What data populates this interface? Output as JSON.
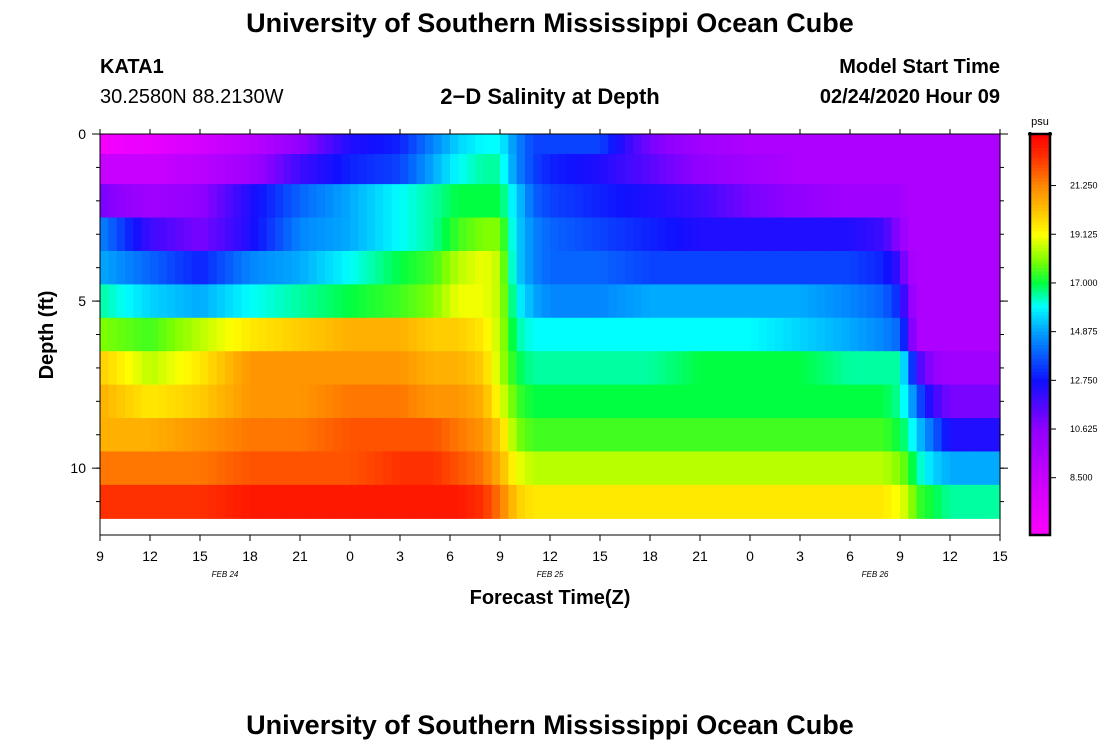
{
  "title": "University of Southern Mississippi Ocean Cube",
  "footer_title": "University of Southern Mississippi Ocean Cube",
  "station": {
    "id": "KATA1",
    "coords": "30.2580N 88.2130W"
  },
  "model": {
    "label": "Model Start Time",
    "value": "02/24/2020 Hour 09"
  },
  "chart_data": {
    "type": "heatmap",
    "title": "2−D Salinity at Depth",
    "xlabel": "Forecast Time(Z)",
    "ylabel": "Depth (ft)",
    "x_range_hours": [
      0,
      54
    ],
    "x_ticks": [
      {
        "h": 0,
        "label": "9"
      },
      {
        "h": 3,
        "label": "12"
      },
      {
        "h": 6,
        "label": "15"
      },
      {
        "h": 9,
        "label": "18"
      },
      {
        "h": 12,
        "label": "21"
      },
      {
        "h": 15,
        "label": "0"
      },
      {
        "h": 18,
        "label": "3"
      },
      {
        "h": 21,
        "label": "6"
      },
      {
        "h": 24,
        "label": "9"
      },
      {
        "h": 27,
        "label": "12"
      },
      {
        "h": 30,
        "label": "15"
      },
      {
        "h": 33,
        "label": "18"
      },
      {
        "h": 36,
        "label": "21"
      },
      {
        "h": 39,
        "label": "0"
      },
      {
        "h": 42,
        "label": "3"
      },
      {
        "h": 45,
        "label": "6"
      },
      {
        "h": 48,
        "label": "9"
      },
      {
        "h": 51,
        "label": "12"
      },
      {
        "h": 54,
        "label": "15"
      }
    ],
    "date_labels": [
      {
        "h": 7.5,
        "label": "FEB 24"
      },
      {
        "h": 27,
        "label": "FEB 25"
      },
      {
        "h": 46.5,
        "label": "FEB 26"
      }
    ],
    "y_range_ft": [
      0,
      12
    ],
    "y_ticks": [
      0,
      5,
      10
    ],
    "y_minor_ticks": [
      0,
      1,
      2,
      3,
      4,
      5,
      6,
      7,
      8,
      9,
      10,
      11
    ],
    "depth_layers": [
      0.5,
      1.5,
      2.5,
      3.5,
      4.5,
      5.5,
      6.5,
      7.5,
      8.5,
      9.5,
      10.5,
      11.5
    ],
    "layer_bounds_ft": [
      0,
      0.6,
      1.5,
      2.5,
      3.5,
      4.5,
      5.5,
      6.5,
      7.5,
      8.5,
      9.5,
      10.5,
      11.5,
      12
    ],
    "x_knots_hours": [
      0,
      3,
      6,
      9,
      12,
      15,
      18,
      20,
      21.5,
      23,
      24,
      25,
      26,
      27,
      30,
      33,
      36,
      39,
      42,
      45,
      47,
      48,
      48.5,
      49,
      50,
      51,
      52,
      54
    ],
    "salinity_psu": [
      [
        6.5,
        7,
        8,
        9,
        10.5,
        12.5,
        13,
        14.5,
        15.5,
        16,
        16,
        14.5,
        13.5,
        13.5,
        13.5,
        11,
        10,
        9.5,
        9.5,
        9.5,
        9.5,
        9.5,
        9.5,
        9.5,
        9.5,
        9.5,
        9.5,
        9.5
      ],
      [
        8.5,
        8.5,
        9,
        10,
        12,
        13,
        13.5,
        15,
        16,
        16.5,
        16.5,
        14.5,
        13.5,
        13,
        12.5,
        11.5,
        10.5,
        10,
        9.5,
        9.5,
        9.5,
        9.5,
        9.5,
        9.5,
        9.5,
        9.5,
        9.5,
        9.5
      ],
      [
        11,
        10,
        10.5,
        12.5,
        14,
        15,
        16,
        16.5,
        17,
        17,
        17,
        15.5,
        14,
        13.5,
        13,
        12.5,
        12,
        11,
        10.5,
        10,
        10,
        10,
        9.5,
        9.5,
        9.5,
        9.5,
        9.5,
        9.5
      ],
      [
        14.5,
        12,
        11,
        12.5,
        14.5,
        15,
        16,
        16.5,
        17.5,
        18,
        18,
        15.5,
        14.5,
        14,
        13.5,
        13,
        12.5,
        12.5,
        12.5,
        12.5,
        12,
        10.5,
        9.5,
        9.5,
        9.5,
        9.5,
        9.5,
        9.5
      ],
      [
        15,
        14,
        13,
        14.5,
        15,
        16,
        17,
        17.5,
        18.5,
        19,
        18.5,
        15.5,
        14.5,
        14,
        14,
        13.5,
        13.5,
        13.5,
        13.5,
        13.5,
        13,
        12,
        10,
        9.5,
        9.5,
        9.5,
        9.5,
        9.5
      ],
      [
        16.5,
        15.5,
        15,
        16,
        16.5,
        17,
        17.5,
        18,
        19,
        19,
        18.5,
        16,
        15,
        14.5,
        14.5,
        15,
        15,
        15,
        15,
        14.5,
        14,
        13,
        11,
        9.5,
        9.5,
        9.5,
        9.5,
        9.5
      ],
      [
        18,
        17.5,
        18.5,
        19.5,
        20,
        20.5,
        20.5,
        20,
        20,
        19.5,
        18.5,
        16.5,
        16,
        16,
        16,
        16,
        16,
        16,
        15.5,
        15,
        14.5,
        14,
        12,
        9.5,
        9.5,
        9.5,
        9.5,
        9.5
      ],
      [
        20,
        18.5,
        19.5,
        21,
        21,
        21,
        21,
        20.5,
        20.5,
        20,
        18.5,
        17,
        16.5,
        16.5,
        16.5,
        16.5,
        17,
        17,
        17,
        16.5,
        16.5,
        16.5,
        14.5,
        12,
        10.5,
        10,
        10,
        10
      ],
      [
        20.5,
        19.5,
        20,
        21,
        21,
        21.5,
        21.5,
        21,
        21,
        20.5,
        19,
        17.5,
        17,
        17,
        17,
        17,
        17,
        17,
        17,
        17,
        17,
        16.5,
        15.5,
        14,
        12,
        11,
        11,
        11
      ],
      [
        20.5,
        20.5,
        21,
        21.5,
        21.5,
        22,
        22,
        22,
        21.5,
        21,
        20,
        18,
        17.5,
        17.5,
        17.5,
        17.5,
        17.5,
        17.5,
        17.5,
        17.5,
        17.5,
        17,
        16.5,
        15.5,
        14,
        12.5,
        12.5,
        12.5
      ],
      [
        21.5,
        21.5,
        21.5,
        22,
        22,
        22,
        22.5,
        22.5,
        22,
        21.5,
        20.5,
        19,
        18.5,
        18.5,
        18.5,
        18.5,
        18.5,
        18.5,
        18.5,
        18.5,
        18.5,
        18,
        17.5,
        16.5,
        15.5,
        15,
        15,
        15
      ],
      [
        22.5,
        22.5,
        22.5,
        23,
        23,
        23,
        23,
        23,
        23,
        22.5,
        21.5,
        20,
        19.5,
        19.5,
        19.5,
        19.5,
        19.5,
        19.5,
        19.5,
        19.5,
        19.5,
        19,
        18.5,
        17.5,
        17,
        16.5,
        16.5,
        16.5
      ]
    ],
    "marker": {
      "h": 20.7,
      "depth_ft": 11.5,
      "color": "#ffffff"
    },
    "colorbar": {
      "unit": "psu",
      "range": [
        6,
        23.5
      ],
      "ticks": [
        8.5,
        10.625,
        12.75,
        14.875,
        17.0,
        19.125,
        21.25
      ],
      "tick_labels": [
        "8.500",
        "10.625",
        "12.750",
        "14.875",
        "17.000",
        "19.125",
        "21.250"
      ]
    },
    "colormap": [
      {
        "v": 6.0,
        "c": "#ff00ff"
      },
      {
        "v": 8.5,
        "c": "#c800ff"
      },
      {
        "v": 10.625,
        "c": "#9000ff"
      },
      {
        "v": 12.75,
        "c": "#1010ff"
      },
      {
        "v": 14.875,
        "c": "#00a0ff"
      },
      {
        "v": 16.0,
        "c": "#00ffff"
      },
      {
        "v": 17.0,
        "c": "#00ff40"
      },
      {
        "v": 18.0,
        "c": "#80ff00"
      },
      {
        "v": 19.125,
        "c": "#ffff00"
      },
      {
        "v": 20.5,
        "c": "#ffb000"
      },
      {
        "v": 21.25,
        "c": "#ff8800"
      },
      {
        "v": 22.5,
        "c": "#ff3000"
      },
      {
        "v": 23.5,
        "c": "#ff0000"
      }
    ]
  }
}
